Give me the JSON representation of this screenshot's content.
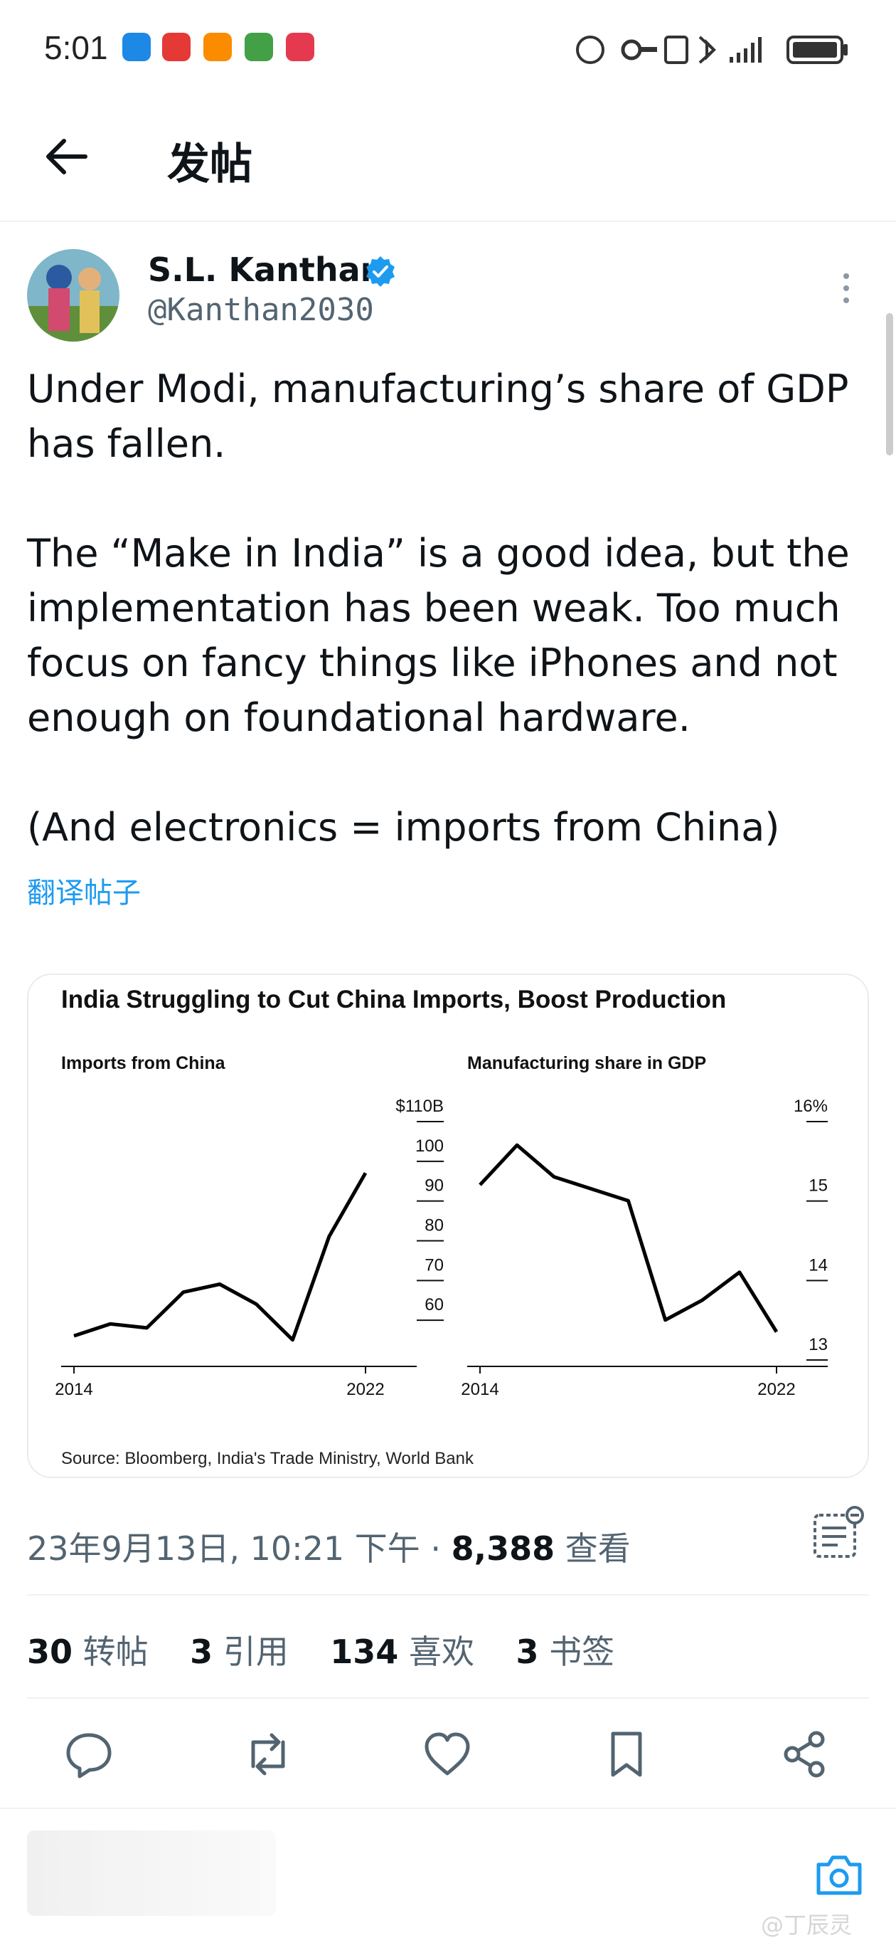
{
  "status_bar": {
    "time": "5:01",
    "icons": [
      "chat-app-icon",
      "red-app-icon",
      "orange-app-icon",
      "green-app-icon",
      "huawei-app-icon"
    ],
    "system_icons": [
      "wifi-icon",
      "key-icon",
      "nfc-icon",
      "bluetooth-icon",
      "signal-icon",
      "battery-icon"
    ]
  },
  "header": {
    "title": "发帖",
    "back_icon": "back-arrow-icon"
  },
  "author": {
    "name": "S.L. Kanthan",
    "handle": "@Kanthan2030",
    "verified": true
  },
  "tweet": {
    "paragraphs": [
      "Under Modi, manufacturing’s share of GDP has fallen.",
      "The “Make in India” is a good idea, but the implementation has been weak. Too much focus on fancy things like iPhones and not enough on foundational hardware.",
      "(And electronics = imports from China)"
    ],
    "translate_label": "翻译帖子"
  },
  "chart_card": {
    "title": "India Struggling to Cut China Imports, Boost Production",
    "source": "Source: Bloomberg, India's Trade Ministry, World Bank"
  },
  "chart_data": [
    {
      "type": "line",
      "title": "Imports from China",
      "x": [
        2014,
        2015,
        2016,
        2017,
        2018,
        2019,
        2020,
        2021,
        2022
      ],
      "values": [
        55,
        58,
        57,
        66,
        68,
        63,
        54,
        80,
        96
      ],
      "xticks": [
        "2014",
        "2022"
      ],
      "yticks": [
        "$110B",
        "100",
        "90",
        "80",
        "70",
        "60"
      ],
      "ylim": [
        50,
        110
      ]
    },
    {
      "type": "line",
      "title": "Manufacturing share in GDP",
      "x": [
        2014,
        2015,
        2016,
        2017,
        2018,
        2019,
        2020,
        2021,
        2022
      ],
      "values": [
        15.15,
        15.65,
        15.25,
        15.1,
        14.95,
        13.45,
        13.7,
        14.05,
        13.3
      ],
      "xticks": [
        "2014",
        "2022"
      ],
      "yticks": [
        "16%",
        "15",
        "14",
        "13"
      ],
      "ylim": [
        13,
        16
      ]
    }
  ],
  "meta": {
    "date": "23年9月13日, 10:21 下午 · ",
    "views_count": "8,388",
    "views_label": " 查看"
  },
  "stats": [
    {
      "count": "30",
      "label": "转帖"
    },
    {
      "count": "3",
      "label": "引用"
    },
    {
      "count": "134",
      "label": "喜欢"
    },
    {
      "count": "3",
      "label": "书签"
    }
  ],
  "actions": [
    "reply-icon",
    "retweet-icon",
    "like-icon",
    "bookmark-icon",
    "share-icon"
  ],
  "watermark": "@丁辰灵",
  "colors": {
    "accent": "#1d9bf0",
    "text": "#0f1419",
    "muted": "#536471",
    "divider": "#eff3f4"
  }
}
